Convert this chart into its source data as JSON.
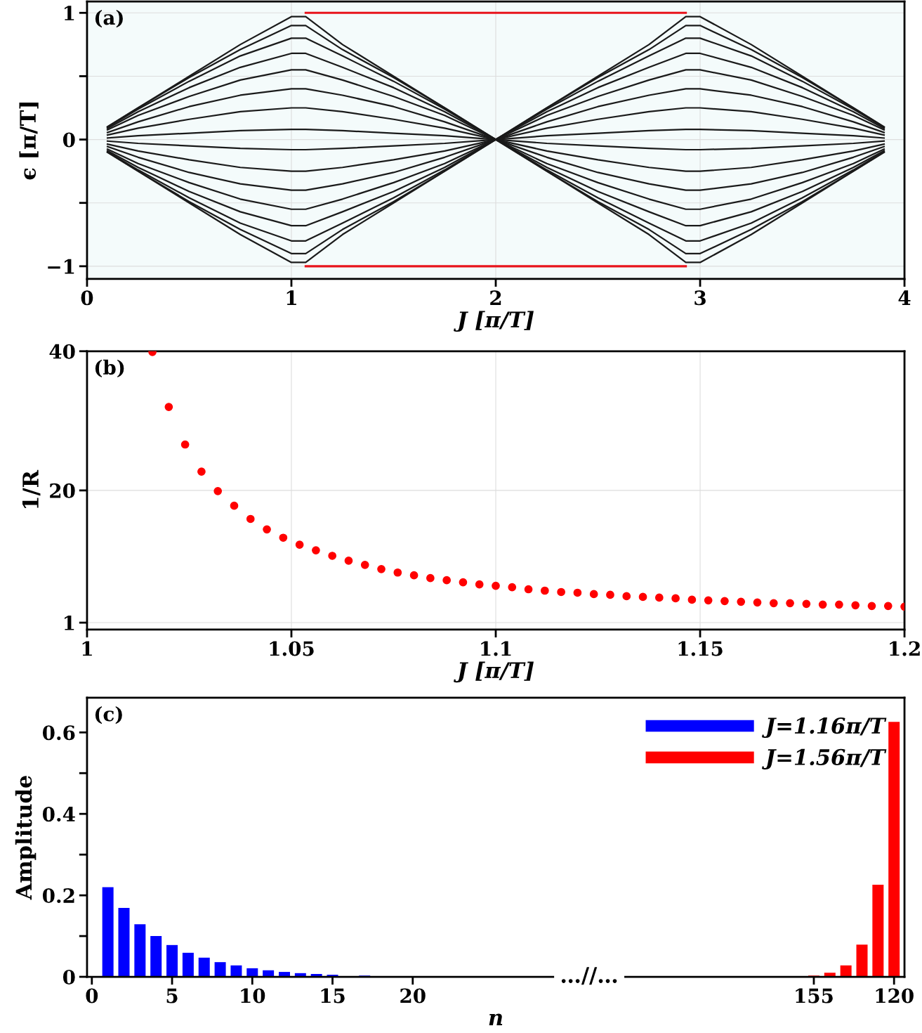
{
  "chart_data": [
    {
      "type": "line",
      "xlabel": "J [π/T]",
      "ylabel": "ϵ [π/T]",
      "annotations": [
        "(a)"
      ],
      "grid": true,
      "xlim": [
        0,
        4
      ],
      "ylim": [
        -1.1,
        1.09
      ],
      "xticks": [
        0,
        1,
        2,
        3,
        4
      ],
      "yticks": [
        {
          "value": -1,
          "label": "−1"
        },
        {
          "value": -0.5,
          "label": null
        },
        0,
        {
          "value": 0.5,
          "label": null
        },
        1
      ],
      "x": [
        0.1,
        0.25,
        0.5,
        0.75,
        1,
        1.07,
        1.25,
        1.5,
        1.75,
        2,
        2.25,
        2.5,
        2.75,
        2.93,
        3,
        3.25,
        3.5,
        3.75,
        3.9
      ],
      "series": [
        {
          "color": "#1a1a1a",
          "values": [
            0.1,
            0.25,
            0.5,
            0.75,
            0.97,
            0.97,
            0.75,
            0.5,
            0.25,
            0,
            0.25,
            0.5,
            0.75,
            0.97,
            0.97,
            0.75,
            0.5,
            0.25,
            0.1
          ]
        },
        {
          "color": "#1a1a1a",
          "values": [
            0.1,
            0.25,
            0.49,
            0.71,
            0.9,
            0.9,
            0.71,
            0.49,
            0.25,
            0,
            0.25,
            0.49,
            0.71,
            0.9,
            0.9,
            0.71,
            0.49,
            0.25,
            0.1
          ]
        },
        {
          "color": "#1a1a1a",
          "values": [
            0.096,
            0.24,
            0.46,
            0.66,
            0.8,
            0.8,
            0.66,
            0.46,
            0.24,
            0,
            0.24,
            0.46,
            0.66,
            0.8,
            0.8,
            0.66,
            0.46,
            0.24,
            0.096
          ]
        },
        {
          "color": "#1a1a1a",
          "values": [
            0.088,
            0.22,
            0.41,
            0.57,
            0.68,
            0.68,
            0.57,
            0.41,
            0.22,
            0,
            0.22,
            0.41,
            0.57,
            0.68,
            0.68,
            0.57,
            0.41,
            0.22,
            0.088
          ]
        },
        {
          "color": "#1a1a1a",
          "values": [
            0.076,
            0.19,
            0.34,
            0.47,
            0.55,
            0.55,
            0.47,
            0.34,
            0.19,
            0,
            0.19,
            0.34,
            0.47,
            0.55,
            0.55,
            0.47,
            0.34,
            0.19,
            0.076
          ]
        },
        {
          "color": "#1a1a1a",
          "values": [
            0.056,
            0.14,
            0.26,
            0.35,
            0.4,
            0.4,
            0.35,
            0.26,
            0.14,
            0,
            0.14,
            0.26,
            0.35,
            0.4,
            0.4,
            0.35,
            0.26,
            0.14,
            0.056
          ]
        },
        {
          "color": "#1a1a1a",
          "values": [
            0.036,
            0.09,
            0.16,
            0.22,
            0.25,
            0.25,
            0.22,
            0.16,
            0.09,
            0,
            0.09,
            0.16,
            0.22,
            0.25,
            0.25,
            0.22,
            0.16,
            0.09,
            0.036
          ]
        },
        {
          "color": "#1a1a1a",
          "values": [
            0.012,
            0.03,
            0.05,
            0.07,
            0.08,
            0.08,
            0.07,
            0.05,
            0.03,
            0,
            0.03,
            0.05,
            0.07,
            0.08,
            0.08,
            0.07,
            0.05,
            0.03,
            0.012
          ]
        },
        {
          "color": "#1a1a1a",
          "values": [
            -0.012,
            -0.03,
            -0.05,
            -0.07,
            -0.08,
            -0.08,
            -0.07,
            -0.05,
            -0.03,
            0,
            -0.03,
            -0.05,
            -0.07,
            -0.08,
            -0.08,
            -0.07,
            -0.05,
            -0.03,
            -0.012
          ]
        },
        {
          "color": "#1a1a1a",
          "values": [
            -0.036,
            -0.09,
            -0.16,
            -0.22,
            -0.25,
            -0.25,
            -0.22,
            -0.16,
            -0.09,
            0,
            -0.09,
            -0.16,
            -0.22,
            -0.25,
            -0.25,
            -0.22,
            -0.16,
            -0.09,
            -0.036
          ]
        },
        {
          "color": "#1a1a1a",
          "values": [
            -0.056,
            -0.14,
            -0.26,
            -0.35,
            -0.4,
            -0.4,
            -0.35,
            -0.26,
            -0.14,
            0,
            -0.14,
            -0.26,
            -0.35,
            -0.4,
            -0.4,
            -0.35,
            -0.26,
            -0.14,
            -0.056
          ]
        },
        {
          "color": "#1a1a1a",
          "values": [
            -0.076,
            -0.19,
            -0.34,
            -0.47,
            -0.55,
            -0.55,
            -0.47,
            -0.34,
            -0.19,
            0,
            -0.19,
            -0.34,
            -0.47,
            -0.55,
            -0.55,
            -0.47,
            -0.34,
            -0.19,
            -0.076
          ]
        },
        {
          "color": "#1a1a1a",
          "values": [
            -0.088,
            -0.22,
            -0.41,
            -0.57,
            -0.68,
            -0.68,
            -0.57,
            -0.41,
            -0.22,
            0,
            -0.22,
            -0.41,
            -0.57,
            -0.68,
            -0.68,
            -0.57,
            -0.41,
            -0.22,
            -0.088
          ]
        },
        {
          "color": "#1a1a1a",
          "values": [
            -0.096,
            -0.24,
            -0.46,
            -0.66,
            -0.8,
            -0.8,
            -0.66,
            -0.46,
            -0.24,
            0,
            -0.24,
            -0.46,
            -0.66,
            -0.8,
            -0.8,
            -0.66,
            -0.46,
            -0.24,
            -0.096
          ]
        },
        {
          "color": "#1a1a1a",
          "values": [
            -0.1,
            -0.25,
            -0.49,
            -0.71,
            -0.9,
            -0.9,
            -0.71,
            -0.49,
            -0.25,
            0,
            -0.25,
            -0.49,
            -0.71,
            -0.9,
            -0.9,
            -0.71,
            -0.49,
            -0.25,
            -0.1
          ]
        },
        {
          "color": "#1a1a1a",
          "values": [
            -0.1,
            -0.25,
            -0.5,
            -0.75,
            -0.97,
            -0.97,
            -0.75,
            -0.5,
            -0.25,
            0,
            -0.25,
            -0.5,
            -0.75,
            -0.97,
            -0.97,
            -0.75,
            -0.5,
            -0.25,
            -0.1
          ]
        },
        {
          "color": "#e8141c",
          "values": [
            null,
            null,
            null,
            null,
            null,
            1,
            1,
            1,
            1,
            1,
            1,
            1,
            1,
            1,
            null,
            null,
            null,
            null,
            null
          ]
        },
        {
          "color": "#e8141c",
          "values": [
            null,
            null,
            null,
            null,
            null,
            -1,
            -1,
            -1,
            -1,
            -1,
            -1,
            -1,
            -1,
            -1,
            null,
            null,
            null,
            null,
            null
          ]
        }
      ]
    },
    {
      "type": "scatter",
      "xlabel": "J [π/T]",
      "ylabel": "1/R",
      "annotations": [
        "(b)"
      ],
      "grid": true,
      "marker": "circle",
      "xlim": [
        1,
        1.2
      ],
      "ylim": [
        0,
        40
      ],
      "xticks": [
        1,
        1.05,
        1.1,
        1.15,
        1.2
      ],
      "yticks": [
        1,
        20,
        40
      ],
      "x": [
        1.016,
        1.02,
        1.024,
        1.028,
        1.032,
        1.036,
        1.04,
        1.044,
        1.048,
        1.052,
        1.056,
        1.06,
        1.064,
        1.068,
        1.072,
        1.076,
        1.08,
        1.084,
        1.088,
        1.092,
        1.096,
        1.1,
        1.104,
        1.108,
        1.112,
        1.116,
        1.12,
        1.124,
        1.128,
        1.132,
        1.136,
        1.14,
        1.144,
        1.148,
        1.152,
        1.156,
        1.16,
        1.164,
        1.168,
        1.172,
        1.176,
        1.18,
        1.184,
        1.188,
        1.192,
        1.196,
        1.2
      ],
      "series": [
        {
          "color": "#ff0000",
          "values": [
            39.9,
            32,
            26.6,
            22.7,
            19.9,
            17.8,
            15.9,
            14.4,
            13.2,
            12.2,
            11.4,
            10.6,
            9.9,
            9.3,
            8.7,
            8.2,
            7.8,
            7.4,
            7.1,
            6.8,
            6.5,
            6.3,
            6.1,
            5.8,
            5.6,
            5.4,
            5.3,
            5.1,
            5.0,
            4.8,
            4.7,
            4.6,
            4.5,
            4.3,
            4.2,
            4.1,
            4.0,
            3.9,
            3.8,
            3.8,
            3.7,
            3.6,
            3.6,
            3.5,
            3.4,
            3.4,
            3.3
          ]
        }
      ]
    },
    {
      "type": "bar",
      "xlabel": "n",
      "ylabel": "Amplitude",
      "annotations": [
        "(c)",
        "…//…"
      ],
      "grid": false,
      "legend": "top right",
      "ylim": [
        0,
        0.685
      ],
      "yticks": [
        0,
        {
          "value": 0.1,
          "label": null
        },
        0.2,
        {
          "value": 0.3,
          "label": null
        },
        0.4,
        {
          "value": 0.5,
          "label": null
        },
        0.6
      ],
      "categories": [
        "0",
        null,
        null,
        null,
        null,
        "5",
        null,
        null,
        null,
        null,
        "10",
        null,
        null,
        null,
        null,
        "15",
        null,
        null,
        null,
        null,
        "20",
        null,
        null,
        null,
        null,
        null,
        null,
        null,
        null,
        null,
        null,
        null,
        null,
        null,
        null,
        null,
        null,
        null,
        null,
        null,
        null,
        null,
        null,
        null,
        null,
        "155",
        null,
        null,
        null,
        null,
        "120"
      ],
      "series": [
        {
          "name": "J=1.16π/T",
          "color": "#0000ff",
          "values": [
            null,
            0.22,
            0.169,
            0.129,
            0.1,
            0.078,
            0.059,
            0.047,
            0.036,
            0.028,
            0.021,
            0.016,
            0.012,
            0.009,
            0.007,
            0.005,
            null,
            0.003,
            null,
            null,
            null,
            null,
            null,
            null,
            null,
            null,
            null,
            null,
            null,
            null,
            null,
            null,
            null,
            null,
            null,
            null,
            null,
            null,
            null,
            null,
            null,
            null,
            null,
            null,
            null,
            null,
            null,
            null,
            null,
            null,
            null
          ]
        },
        {
          "name": "J=1.56π/T",
          "color": "#ff0000",
          "values": [
            null,
            null,
            null,
            null,
            null,
            null,
            null,
            null,
            null,
            null,
            null,
            null,
            null,
            null,
            null,
            null,
            null,
            null,
            null,
            null,
            null,
            null,
            null,
            null,
            null,
            null,
            null,
            null,
            null,
            null,
            null,
            null,
            null,
            null,
            null,
            null,
            null,
            null,
            null,
            null,
            null,
            null,
            null,
            null,
            null,
            0.003,
            0.01,
            0.028,
            0.079,
            0.226,
            0.626
          ]
        }
      ]
    }
  ]
}
